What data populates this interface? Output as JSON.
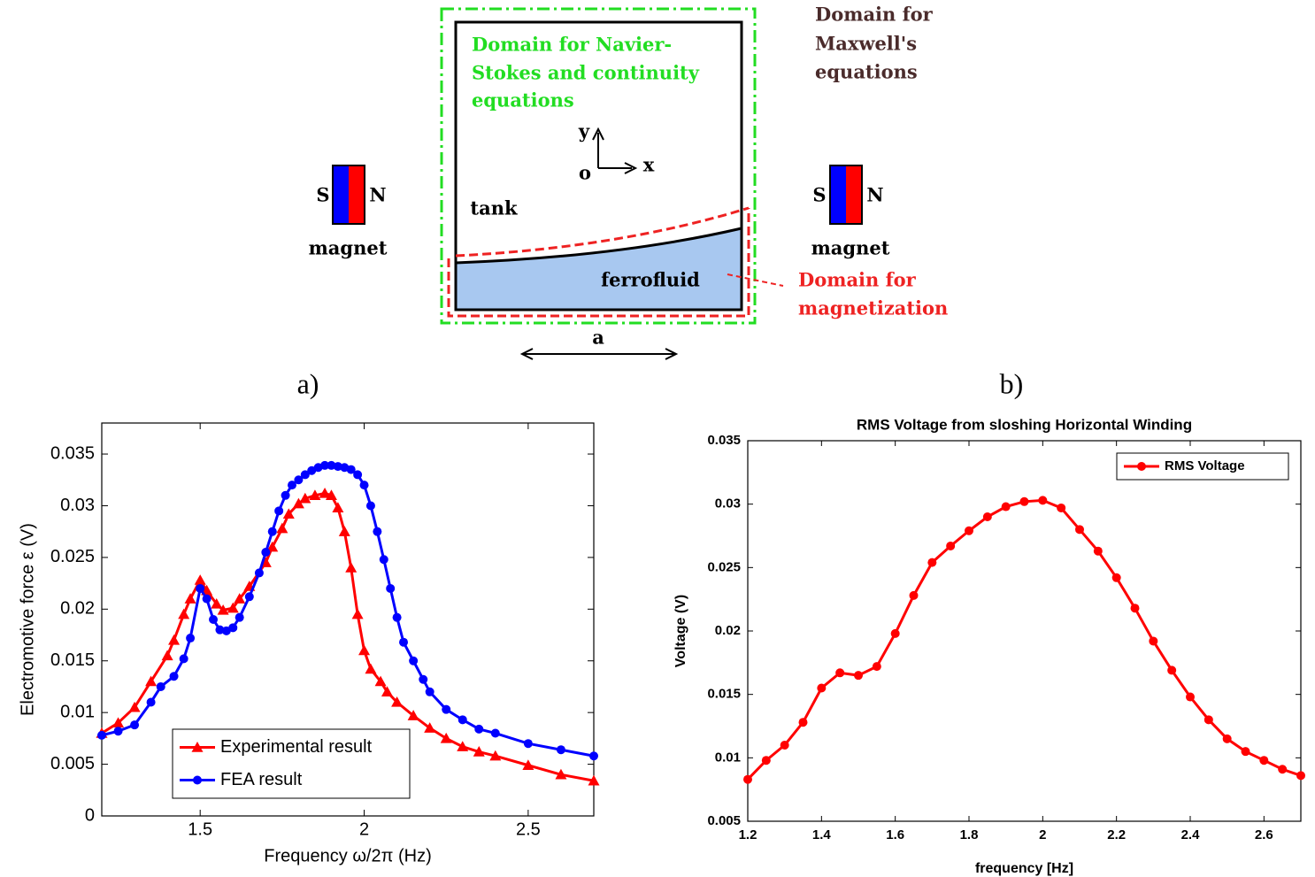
{
  "diagram": {
    "navier_stokes_label": [
      "Domain for Navier-",
      "Stokes and continuity",
      "equations"
    ],
    "maxwell_label": [
      "Domain for",
      "Maxwell's",
      "equations"
    ],
    "magnetization_label": [
      "Domain for",
      "magnetization"
    ],
    "magnets": [
      {
        "s": "S",
        "n": "N",
        "label": "magnet"
      },
      {
        "s": "S",
        "n": "N",
        "label": "magnet"
      }
    ],
    "axis_y": "y",
    "axis_origin": "o",
    "axis_x": "x",
    "tank": "tank",
    "ferrofluid": "ferrofluid",
    "width_label": "a"
  },
  "panel_labels": [
    "a)",
    "b)"
  ],
  "chart_data": [
    {
      "type": "line",
      "x_label": "Frequency ω/2π (Hz)",
      "y_label": "Electromotive force ε (V)",
      "xlim": [
        1.2,
        2.7
      ],
      "ylim": [
        0,
        0.038
      ],
      "xticks": [
        1.5,
        2,
        2.5
      ],
      "yticks": [
        0,
        0.005,
        0.01,
        0.015,
        0.02,
        0.025,
        0.03,
        0.035
      ],
      "legend": "lower left",
      "grid": false,
      "series": [
        {
          "name": "Experimental result",
          "color": "#ff0000",
          "marker": "triangle",
          "x": [
            1.2,
            1.25,
            1.3,
            1.35,
            1.4,
            1.42,
            1.45,
            1.47,
            1.5,
            1.52,
            1.55,
            1.57,
            1.6,
            1.62,
            1.65,
            1.7,
            1.72,
            1.75,
            1.77,
            1.8,
            1.82,
            1.85,
            1.88,
            1.9,
            1.92,
            1.94,
            1.96,
            1.98,
            2.0,
            2.02,
            2.05,
            2.07,
            2.1,
            2.15,
            2.2,
            2.25,
            2.3,
            2.35,
            2.4,
            2.5,
            2.6,
            2.7
          ],
          "values": [
            0.008,
            0.009,
            0.0105,
            0.013,
            0.0155,
            0.017,
            0.0195,
            0.021,
            0.0228,
            0.0218,
            0.0205,
            0.0199,
            0.0201,
            0.021,
            0.0222,
            0.0245,
            0.026,
            0.0278,
            0.0292,
            0.0302,
            0.0307,
            0.031,
            0.0312,
            0.031,
            0.0298,
            0.0275,
            0.024,
            0.0195,
            0.016,
            0.0142,
            0.013,
            0.012,
            0.011,
            0.0097,
            0.0085,
            0.0075,
            0.0067,
            0.0062,
            0.0058,
            0.0049,
            0.004,
            0.0034
          ]
        },
        {
          "name": "FEA result",
          "color": "#0000ff",
          "marker": "circle",
          "x": [
            1.2,
            1.25,
            1.3,
            1.35,
            1.38,
            1.42,
            1.45,
            1.47,
            1.5,
            1.52,
            1.54,
            1.56,
            1.58,
            1.6,
            1.62,
            1.65,
            1.68,
            1.7,
            1.72,
            1.74,
            1.76,
            1.78,
            1.8,
            1.82,
            1.84,
            1.86,
            1.88,
            1.9,
            1.92,
            1.94,
            1.96,
            1.98,
            2.0,
            2.02,
            2.04,
            2.06,
            2.08,
            2.1,
            2.12,
            2.15,
            2.18,
            2.2,
            2.25,
            2.3,
            2.35,
            2.4,
            2.5,
            2.6,
            2.7
          ],
          "values": [
            0.0078,
            0.0082,
            0.0088,
            0.011,
            0.0125,
            0.0135,
            0.0152,
            0.0172,
            0.022,
            0.021,
            0.019,
            0.018,
            0.0179,
            0.0182,
            0.0192,
            0.0212,
            0.0235,
            0.0255,
            0.0275,
            0.0295,
            0.031,
            0.032,
            0.0325,
            0.033,
            0.0334,
            0.0337,
            0.0339,
            0.0339,
            0.0338,
            0.0337,
            0.0335,
            0.033,
            0.032,
            0.03,
            0.0275,
            0.0248,
            0.022,
            0.0192,
            0.0168,
            0.015,
            0.0132,
            0.012,
            0.0103,
            0.0093,
            0.0084,
            0.008,
            0.007,
            0.0064,
            0.0058
          ]
        }
      ]
    },
    {
      "type": "line",
      "title": "RMS Voltage from sloshing Horizontal Winding",
      "x_label": "frequency [Hz]",
      "y_label": "Voltage (V)",
      "xlim": [
        1.2,
        2.7
      ],
      "ylim": [
        0.005,
        0.035
      ],
      "xticks": [
        1.2,
        1.4,
        1.6,
        1.8,
        2,
        2.2,
        2.4,
        2.6
      ],
      "yticks": [
        0.005,
        0.01,
        0.015,
        0.02,
        0.025,
        0.03,
        0.035
      ],
      "legend": "upper right",
      "grid": false,
      "series": [
        {
          "name": "RMS Voltage",
          "color": "#ff0000",
          "marker": "circle",
          "x": [
            1.2,
            1.25,
            1.3,
            1.35,
            1.4,
            1.45,
            1.5,
            1.55,
            1.6,
            1.65,
            1.7,
            1.75,
            1.8,
            1.85,
            1.9,
            1.95,
            2.0,
            2.05,
            2.1,
            2.15,
            2.2,
            2.25,
            2.3,
            2.35,
            2.4,
            2.45,
            2.5,
            2.55,
            2.6,
            2.65,
            2.7
          ],
          "values": [
            0.0083,
            0.0098,
            0.011,
            0.0128,
            0.0155,
            0.0167,
            0.0165,
            0.0172,
            0.0198,
            0.0228,
            0.0254,
            0.0267,
            0.0279,
            0.029,
            0.0298,
            0.0302,
            0.0303,
            0.0297,
            0.028,
            0.0263,
            0.0242,
            0.0218,
            0.0192,
            0.0169,
            0.0148,
            0.013,
            0.0115,
            0.0105,
            0.0098,
            0.0091,
            0.0086
          ]
        }
      ]
    }
  ]
}
